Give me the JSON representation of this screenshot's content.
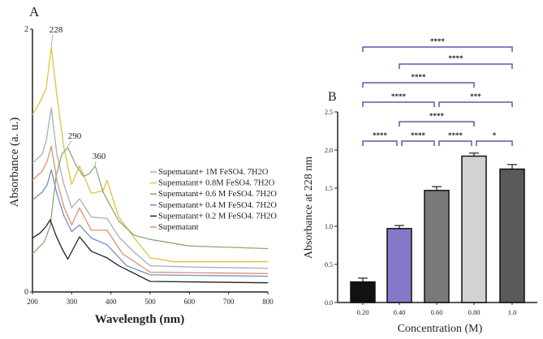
{
  "chart_data": [
    {
      "panel_label": "A",
      "type": "line",
      "xlabel": "Wavelength (nm)",
      "ylabel": "Absorbance (a. u.)",
      "xlim": [
        200,
        800
      ],
      "ylim": [
        0,
        2
      ],
      "xticks": [
        "200",
        "300",
        "400",
        "500",
        "600",
        "700",
        "800"
      ],
      "yticks": [
        "0",
        "2"
      ],
      "annotations": [
        {
          "text": "228",
          "x": 248,
          "y": 1.86
        },
        {
          "text": "290",
          "x": 290,
          "y": 1.1
        },
        {
          "text": "360",
          "x": 360,
          "y": 0.96
        }
      ],
      "legend_position": "center-right",
      "series": [
        {
          "name": "Supematant+ 1M FeSO4. 7H2O",
          "color": "#a9adb6",
          "x": [
            200,
            225,
            235,
            248,
            262,
            280,
            300,
            320,
            350,
            390,
            420,
            460,
            500,
            600,
            800
          ],
          "y": [
            0.98,
            1.05,
            1.15,
            1.4,
            1.05,
            0.82,
            0.64,
            0.71,
            0.57,
            0.56,
            0.42,
            0.3,
            0.2,
            0.19,
            0.18
          ]
        },
        {
          "name": "Supematant+ 0.8M FeSO4. 7H2O",
          "color": "#e0c338",
          "x": [
            200,
            220,
            235,
            248,
            262,
            280,
            300,
            320,
            350,
            380,
            390,
            420,
            460,
            500,
            560,
            800
          ],
          "y": [
            1.35,
            1.45,
            1.55,
            1.86,
            1.5,
            1.1,
            0.82,
            0.96,
            0.75,
            0.77,
            0.85,
            0.57,
            0.41,
            0.26,
            0.23,
            0.23
          ]
        },
        {
          "name": "Supematant+ 0.6 M FeSO4. 7H2O",
          "color": "#8fa675",
          "x": [
            200,
            230,
            245,
            260,
            275,
            290,
            310,
            330,
            345,
            360,
            380,
            420,
            460,
            500,
            600,
            800
          ],
          "y": [
            0.29,
            0.38,
            0.5,
            0.88,
            1.05,
            1.1,
            0.97,
            0.88,
            0.9,
            0.96,
            0.76,
            0.54,
            0.43,
            0.4,
            0.35,
            0.33
          ]
        },
        {
          "name": "Supematant+ 0.4 M FeSO4. 7H2O",
          "color": "#6f8fc4",
          "x": [
            200,
            225,
            238,
            248,
            262,
            280,
            300,
            320,
            350,
            390,
            440,
            500,
            800
          ],
          "y": [
            0.7,
            0.76,
            0.82,
            0.93,
            0.75,
            0.58,
            0.46,
            0.51,
            0.41,
            0.36,
            0.2,
            0.13,
            0.12
          ]
        },
        {
          "name": "Supematant+ 0.2 M FeSO4. 7H2O",
          "color": "#222222",
          "x": [
            200,
            220,
            235,
            245,
            260,
            275,
            290,
            320,
            350,
            390,
            420,
            500,
            800
          ],
          "y": [
            0.41,
            0.45,
            0.5,
            0.55,
            0.43,
            0.33,
            0.25,
            0.42,
            0.31,
            0.26,
            0.2,
            0.08,
            0.07
          ]
        },
        {
          "name": "Supematant",
          "color": "#d99273",
          "x": [
            200,
            225,
            238,
            248,
            262,
            280,
            300,
            320,
            350,
            390,
            430,
            500,
            800
          ],
          "y": [
            0.85,
            0.92,
            1.0,
            1.11,
            0.85,
            0.65,
            0.51,
            0.64,
            0.47,
            0.47,
            0.29,
            0.15,
            0.14
          ]
        }
      ]
    },
    {
      "panel_label": "B",
      "type": "bar",
      "xlabel": "Concentration (M)",
      "ylabel": "Absorbance at 228 nm",
      "ylim": [
        0,
        2.5
      ],
      "yticks": [
        "0.0",
        "0.5",
        "1.0",
        "1.5",
        "2.0",
        "2.5"
      ],
      "categories": [
        "0.20",
        "0.40",
        "0.60",
        "0.80",
        "1.0"
      ],
      "values": [
        0.27,
        0.97,
        1.47,
        1.92,
        1.75
      ],
      "errors": [
        0.05,
        0.04,
        0.05,
        0.04,
        0.06
      ],
      "colors": [
        "#111111",
        "#8478c8",
        "#7a7a7a",
        "#d2d2d2",
        "#5a5a5a"
      ],
      "bracket_color": "#5a5aaa",
      "significance": [
        {
          "from": 0,
          "to": 1,
          "label": "****"
        },
        {
          "from": 1,
          "to": 2,
          "label": "****"
        },
        {
          "from": 2,
          "to": 3,
          "label": "****"
        },
        {
          "from": 3,
          "to": 4,
          "label": "*"
        },
        {
          "from": 1,
          "to": 3,
          "label": "****"
        },
        {
          "from": 0,
          "to": 2,
          "label": "****"
        },
        {
          "from": 2,
          "to": 4,
          "label": "***"
        },
        {
          "from": 0,
          "to": 3,
          "label": "****"
        },
        {
          "from": 1,
          "to": 4,
          "label": "****"
        },
        {
          "from": 0,
          "to": 4,
          "label": "****"
        }
      ]
    }
  ]
}
